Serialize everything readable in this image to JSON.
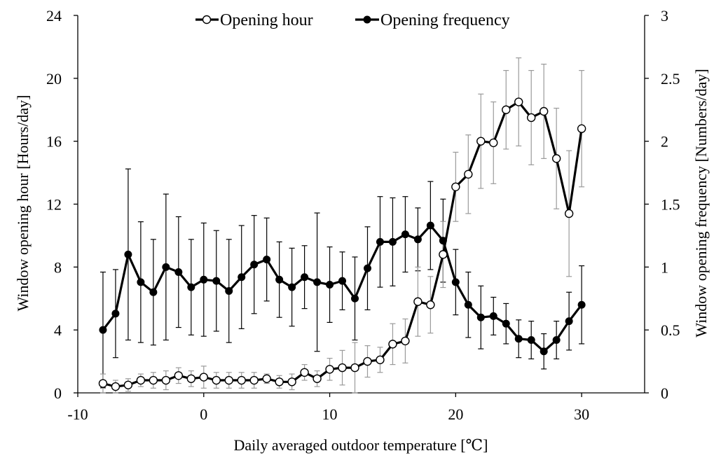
{
  "chart_data": {
    "type": "line",
    "xlabel": "Daily averaged outdoor temperature [℃]",
    "ylabel_left": "Window opening hour [Hours/day]",
    "ylabel_right": "Window opening frequency [Numbers/day]",
    "xlim": [
      -10,
      35
    ],
    "x_ticks": [
      -10,
      0,
      10,
      20,
      30
    ],
    "ylim_left": [
      0,
      24
    ],
    "y_ticks_left": [
      0,
      4,
      8,
      12,
      16,
      20,
      24
    ],
    "ylim_right": [
      0,
      3
    ],
    "y_ticks_right": [
      "0",
      "0.5",
      "1",
      "1.5",
      "2",
      "2.5",
      "3"
    ],
    "grid": false,
    "legend_position": "top-center",
    "x": [
      -8,
      -7,
      -6,
      -5,
      -4,
      -3,
      -2,
      -1,
      0,
      1,
      2,
      3,
      4,
      5,
      6,
      7,
      8,
      9,
      10,
      11,
      12,
      13,
      14,
      15,
      16,
      17,
      18,
      19,
      20,
      21,
      22,
      23,
      24,
      25,
      26,
      27,
      28,
      29,
      30
    ],
    "series": [
      {
        "name": "Opening hour",
        "axis": "left",
        "marker": "open-circle",
        "color": "#000000",
        "values": [
          0.6,
          0.4,
          0.5,
          0.8,
          0.8,
          0.8,
          1.1,
          0.9,
          1.0,
          0.8,
          0.8,
          0.8,
          0.8,
          0.9,
          0.7,
          0.7,
          1.3,
          0.9,
          1.5,
          1.6,
          1.6,
          2.0,
          2.1,
          3.1,
          3.3,
          5.8,
          5.6,
          8.8,
          13.1,
          13.9,
          16.0,
          15.9,
          18.0,
          18.5,
          17.5,
          17.9,
          14.9,
          11.4,
          16.8
        ],
        "error": [
          0.6,
          0.4,
          0.4,
          0.4,
          0.5,
          0.6,
          0.5,
          0.5,
          0.7,
          0.5,
          0.5,
          0.5,
          0.5,
          0.3,
          0.4,
          0.5,
          0.5,
          0.5,
          0.7,
          1.1,
          1.6,
          1.0,
          0.8,
          1.3,
          1.4,
          2.2,
          1.8,
          2.1,
          2.2,
          2.5,
          3.0,
          2.6,
          2.5,
          2.8,
          3.0,
          3.0,
          3.2,
          4.0,
          3.7
        ]
      },
      {
        "name": "Opening frequency",
        "axis": "right",
        "marker": "filled-circle",
        "color": "#000000",
        "values": [
          0.5,
          0.63,
          1.1,
          0.88,
          0.8,
          1.0,
          0.96,
          0.84,
          0.9,
          0.89,
          0.81,
          0.92,
          1.02,
          1.06,
          0.9,
          0.84,
          0.92,
          0.88,
          0.86,
          0.89,
          0.75,
          0.99,
          1.2,
          1.2,
          1.26,
          1.22,
          1.33,
          1.21,
          0.88,
          0.7,
          0.6,
          0.61,
          0.55,
          0.43,
          0.42,
          0.33,
          0.42,
          0.57,
          0.7
        ],
        "error": [
          0.46,
          0.35,
          0.68,
          0.48,
          0.42,
          0.58,
          0.44,
          0.38,
          0.45,
          0.4,
          0.41,
          0.41,
          0.39,
          0.33,
          0.3,
          0.31,
          0.25,
          0.55,
          0.3,
          0.23,
          0.33,
          0.33,
          0.36,
          0.35,
          0.3,
          0.25,
          0.35,
          0.33,
          0.26,
          0.26,
          0.25,
          0.15,
          0.16,
          0.15,
          0.15,
          0.14,
          0.15,
          0.23,
          0.31
        ]
      }
    ]
  }
}
